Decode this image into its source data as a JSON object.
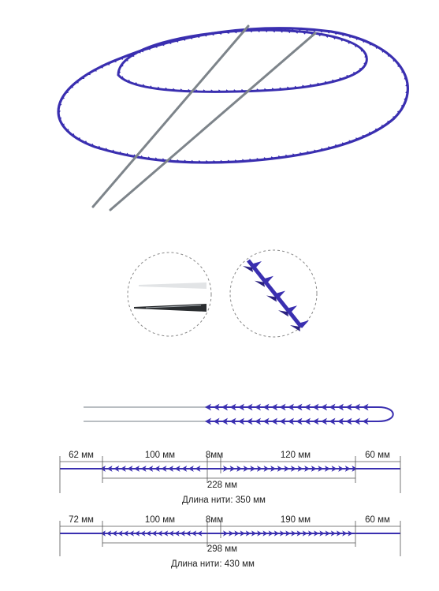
{
  "colors": {
    "thread": "#3a2fb0",
    "needle": "#8f969c",
    "dash": "#888888",
    "text": "#222222"
  },
  "icons": {
    "needle_thread_loop": "needle-thread-loop-illustration",
    "needle_tip_zoom": "needle-tip-zoom-icon",
    "barb_zoom": "barb-zoom-icon"
  },
  "diagram1": {
    "seg_left": "62 мм",
    "seg_barbs_left": "100 мм",
    "seg_center": "8мм",
    "seg_barbs_right": "120 мм",
    "seg_right": "60 мм",
    "barbed_total": "228 мм",
    "thread_length": "Длина нити: 350 мм"
  },
  "diagram2": {
    "seg_left": "72 мм",
    "seg_barbs_left": "100 мм",
    "seg_center": "8мм",
    "seg_barbs_right": "190 мм",
    "seg_right": "60 мм",
    "barbed_total": "298 мм",
    "thread_length": "Длина нити: 430 мм"
  }
}
